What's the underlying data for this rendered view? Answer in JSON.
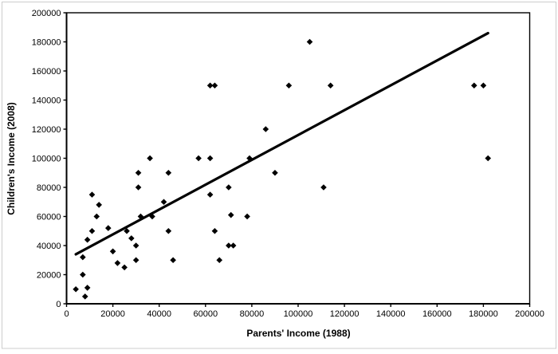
{
  "chart_data": {
    "type": "scatter",
    "title": "",
    "xlabel": "Parents' Income (1988)",
    "ylabel": "Children's Income (2008)",
    "xlim": [
      0,
      200000
    ],
    "ylim": [
      0,
      200000
    ],
    "x_ticks": [
      0,
      20000,
      40000,
      60000,
      80000,
      100000,
      120000,
      140000,
      160000,
      180000,
      200000
    ],
    "y_ticks": [
      0,
      20000,
      40000,
      60000,
      80000,
      100000,
      120000,
      140000,
      160000,
      180000,
      200000
    ],
    "grid": false,
    "legend": "none",
    "marker": "diamond",
    "marker_color": "#000000",
    "axis_color": "#000000",
    "figure_border_color": "#cccccc",
    "points": [
      [
        4000,
        10000
      ],
      [
        7000,
        20000
      ],
      [
        7000,
        32000
      ],
      [
        8000,
        5000
      ],
      [
        9000,
        11000
      ],
      [
        9000,
        44000
      ],
      [
        11000,
        50000
      ],
      [
        11000,
        75000
      ],
      [
        13000,
        60000
      ],
      [
        14000,
        68000
      ],
      [
        18000,
        52000
      ],
      [
        20000,
        36000
      ],
      [
        22000,
        28000
      ],
      [
        25000,
        25000
      ],
      [
        26000,
        50000
      ],
      [
        28000,
        45000
      ],
      [
        30000,
        30000
      ],
      [
        30000,
        40000
      ],
      [
        31000,
        80000
      ],
      [
        31000,
        90000
      ],
      [
        32000,
        60000
      ],
      [
        36000,
        100000
      ],
      [
        37000,
        60000
      ],
      [
        42000,
        70000
      ],
      [
        44000,
        50000
      ],
      [
        44000,
        90000
      ],
      [
        46000,
        30000
      ],
      [
        57000,
        100000
      ],
      [
        62000,
        75000
      ],
      [
        62000,
        100000
      ],
      [
        62000,
        150000
      ],
      [
        64000,
        150000
      ],
      [
        64000,
        50000
      ],
      [
        66000,
        30000
      ],
      [
        70000,
        40000
      ],
      [
        70000,
        80000
      ],
      [
        71000,
        61000
      ],
      [
        72000,
        40000
      ],
      [
        78000,
        60000
      ],
      [
        79000,
        100000
      ],
      [
        86000,
        120000
      ],
      [
        90000,
        90000
      ],
      [
        96000,
        150000
      ],
      [
        105000,
        180000
      ],
      [
        111000,
        80000
      ],
      [
        114000,
        150000
      ],
      [
        176000,
        150000
      ],
      [
        180000,
        150000
      ],
      [
        182000,
        100000
      ]
    ],
    "trendline": {
      "x1": 4000,
      "y1": 34000,
      "x2": 182000,
      "y2": 186000,
      "color": "#000000"
    }
  }
}
